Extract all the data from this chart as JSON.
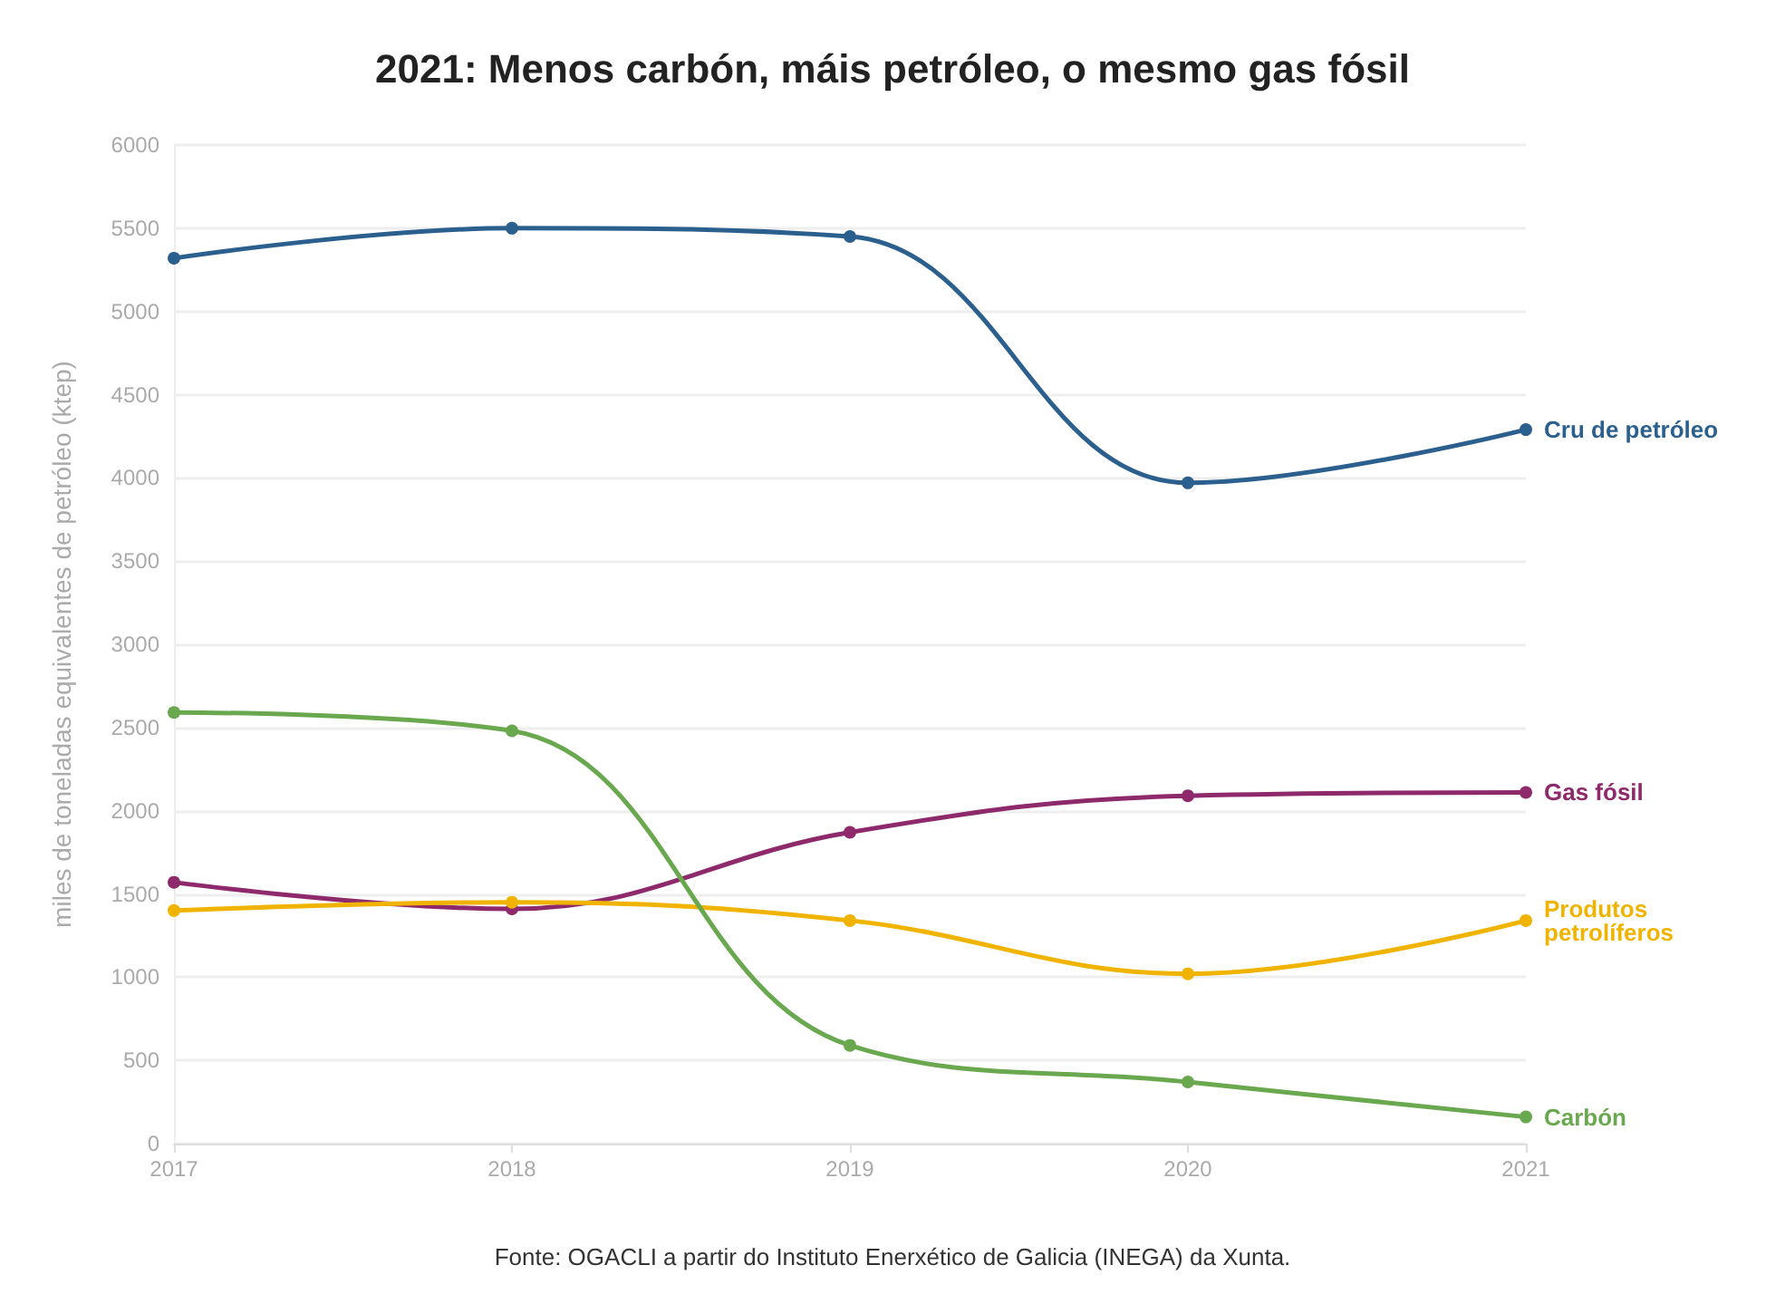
{
  "chart_data": {
    "type": "line",
    "title": "2021: Menos carbón, máis petróleo, o mesmo gas fósil",
    "ylabel": "miles de toneladas equivalentes de petróleo (ktep)",
    "categories": [
      "2017",
      "2018",
      "2019",
      "2020",
      "2021"
    ],
    "series": [
      {
        "name": "Cru de petróleo",
        "color": "#2b5f8e",
        "values": [
          5320,
          5500,
          5450,
          3970,
          4290
        ]
      },
      {
        "name": "Gas fósil",
        "color": "#8e2a6b",
        "values": [
          1570,
          1410,
          1870,
          2090,
          2110
        ]
      },
      {
        "name": "Produtos petrolíferos",
        "color": "#f0b400",
        "values": [
          1400,
          1450,
          1340,
          1020,
          1340
        ]
      },
      {
        "name": "Carbón",
        "color": "#6aa84f",
        "values": [
          2590,
          2480,
          590,
          370,
          160
        ]
      }
    ],
    "ylim": [
      0,
      6000
    ],
    "yticks": [
      0,
      500,
      1000,
      1500,
      2000,
      2500,
      3000,
      3500,
      4000,
      4500,
      5000,
      5500,
      6000
    ],
    "grid": "y",
    "marker": "circle",
    "line_style": "solid",
    "annotations": [
      "Fonte: OGACLI a partir do Instituto Enerxético de Galicia (INEGA) da Xunta."
    ]
  }
}
